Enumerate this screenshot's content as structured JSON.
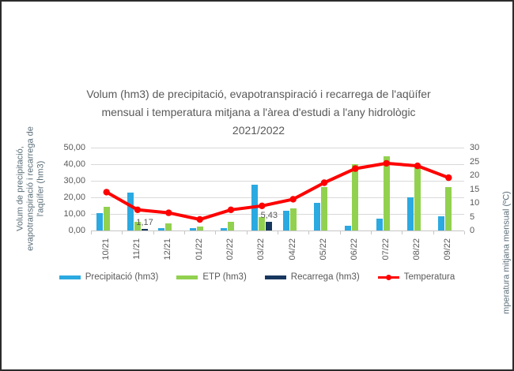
{
  "title": {
    "lines": [
      "Volum (hm3) de precipitació, evapotranspiració i recarrega de l'aqüífer",
      "mensual i temperatura mitjana a l'àrea d'estudi a l'any hidrològic",
      "2021/2022"
    ]
  },
  "chart_data": {
    "type": "bar",
    "subtype": "combo-bar-line",
    "categories": [
      "10/21",
      "11/21",
      "12/21",
      "01/22",
      "02/22",
      "03/22",
      "04/22",
      "05/22",
      "06/22",
      "07/22",
      "08/22",
      "09/22"
    ],
    "series": [
      {
        "name": "Precipitació (hm3)",
        "chart_type": "bar",
        "axis": "left",
        "color": "#2BA9E1",
        "values": [
          10.3,
          22.8,
          1.2,
          1.6,
          1.2,
          27.6,
          12.0,
          16.7,
          3.1,
          7.3,
          20.0,
          8.6
        ]
      },
      {
        "name": "ETP (hm3)",
        "chart_type": "bar",
        "axis": "left",
        "color": "#92D14F",
        "values": [
          14.5,
          5.2,
          4.2,
          2.4,
          5.2,
          8.0,
          13.3,
          26.3,
          39.8,
          44.8,
          39.3,
          26.3
        ]
      },
      {
        "name": "Recarrega (hm3)",
        "chart_type": "bar",
        "axis": "left",
        "color": "#17375E",
        "values": [
          0,
          1.17,
          0,
          0,
          0,
          5.43,
          0,
          0,
          0,
          0,
          0,
          0
        ],
        "data_labels": {
          "1": "1,17",
          "5": "5,43"
        }
      },
      {
        "name": "Temperatura",
        "chart_type": "line",
        "axis": "right",
        "color": "#FE0000",
        "values": [
          13.9,
          7.5,
          6.4,
          4.0,
          7.5,
          8.9,
          11.3,
          17.3,
          22.4,
          24.3,
          23.4,
          19.1
        ]
      }
    ],
    "left_axis": {
      "title_lines": [
        "Volum de precipitació,",
        "evapotranspiració i recarrega de",
        "l'aqüífer (hm3)"
      ],
      "ticks": [
        "50,00",
        "40,00",
        "30,00",
        "20,00",
        "10,00",
        "0,00"
      ],
      "min": 0,
      "max": 50
    },
    "right_axis": {
      "title": "mperatura mitjana mensual (ºC)",
      "ticks": [
        "30",
        "25",
        "20",
        "15",
        "10",
        "5",
        "0"
      ],
      "min": 0,
      "max": 30
    },
    "grid": true,
    "legend_position": "bottom"
  },
  "colors": {
    "background": "#FFFFFF",
    "frame_border": "#2B2B2B",
    "gridline": "#D9D9D9",
    "axis_line": "#C6C6C6",
    "text": "#595959"
  }
}
